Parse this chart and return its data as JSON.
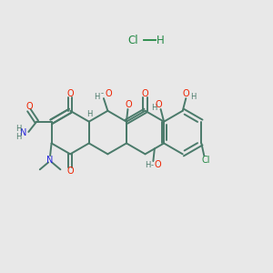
{
  "background_color": "#e8e8e8",
  "bond_color": "#4a7a6a",
  "bond_width": 1.4,
  "O_color": "#ee2200",
  "N_color": "#2222dd",
  "Cl_color": "#228844",
  "H_color": "#4a7a6a",
  "figsize": [
    3.0,
    3.0
  ],
  "dpi": 100,
  "xlim": [
    0,
    10
  ],
  "ylim": [
    0,
    10
  ]
}
